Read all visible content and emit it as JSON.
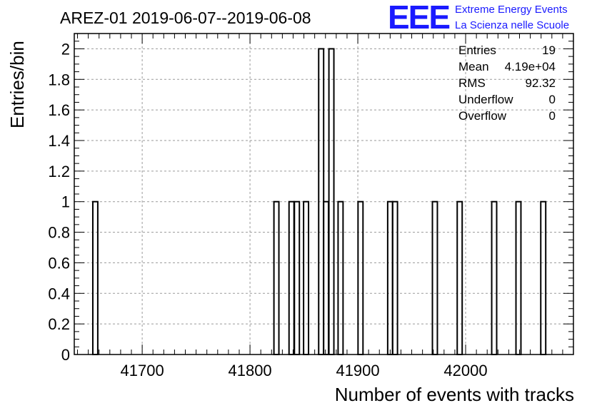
{
  "logo": {
    "mark": "EEE",
    "line1": "Extreme Energy Events",
    "line2": "La Scienza nelle Scuole",
    "color": "#1a1aff"
  },
  "stats": [
    {
      "label": "Entries",
      "value": "19"
    },
    {
      "label": "Mean",
      "value": "4.19e+04"
    },
    {
      "label": "RMS",
      "value": "92.32"
    },
    {
      "label": "Underflow",
      "value": "0"
    },
    {
      "label": "Overflow",
      "value": "0"
    }
  ],
  "chart_data": {
    "type": "bar",
    "histogram": true,
    "title": "AREZ-01 2019-06-07--2019-06-08",
    "xlabel": "Number of events with tracks",
    "ylabel": "Entries/bin",
    "xlim": [
      41637,
      42100
    ],
    "ylim": [
      0,
      2.1
    ],
    "xticks": [
      41700,
      41800,
      41900,
      42000
    ],
    "xtick_labels": [
      "41700",
      "41800",
      "41900",
      "42000"
    ],
    "yticks": [
      0,
      0.2,
      0.4,
      0.6,
      0.8,
      1,
      1.2,
      1.4,
      1.6,
      1.8,
      2
    ],
    "ytick_labels": [
      "0",
      "0.2",
      "0.4",
      "0.6",
      "0.8",
      "1",
      "1.2",
      "1.4",
      "1.6",
      "1.8",
      "2"
    ],
    "grid": true,
    "bin_width": 4.6,
    "bins": [
      {
        "x": 41656.5,
        "count": 1
      },
      {
        "x": 41824.5,
        "count": 1
      },
      {
        "x": 41838.5,
        "count": 1
      },
      {
        "x": 41843.5,
        "count": 1
      },
      {
        "x": 41852.0,
        "count": 1
      },
      {
        "x": 41866.0,
        "count": 2
      },
      {
        "x": 41870.5,
        "count": 1
      },
      {
        "x": 41875.5,
        "count": 2
      },
      {
        "x": 41884.0,
        "count": 1
      },
      {
        "x": 41902.5,
        "count": 1
      },
      {
        "x": 41930.0,
        "count": 1
      },
      {
        "x": 41934.5,
        "count": 1
      },
      {
        "x": 41971.5,
        "count": 1
      },
      {
        "x": 41994.5,
        "count": 1
      },
      {
        "x": 42026.5,
        "count": 1
      },
      {
        "x": 42049.0,
        "count": 1
      },
      {
        "x": 42072.0,
        "count": 1
      }
    ]
  }
}
